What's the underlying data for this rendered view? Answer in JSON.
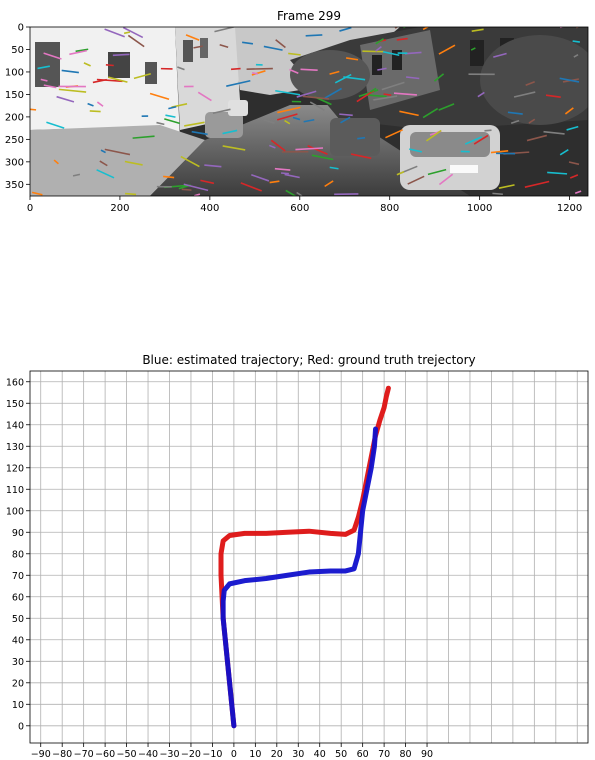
{
  "chart_data": [
    {
      "type": "image",
      "title": "Frame 299",
      "xlim": [
        0,
        1241
      ],
      "ylim": [
        376,
        0
      ],
      "xticks": [
        0,
        200,
        400,
        600,
        800,
        1000,
        1200
      ],
      "yticks": [
        0,
        50,
        100,
        150,
        200,
        250,
        300,
        350
      ],
      "colors": {
        "frame_dark": "#3a3a3a",
        "road": "#4a4a4a",
        "sky": "#bdbdbd",
        "building_left": "#f2f2f2"
      },
      "feature_track_colors": [
        "#1f77b4",
        "#ff7f0e",
        "#2ca02c",
        "#d62728",
        "#9467bd",
        "#8c564b",
        "#e377c2",
        "#7f7f7f",
        "#bcbd22",
        "#17becf"
      ]
    },
    {
      "type": "line",
      "title": "Blue: estimated trajectory; Red: ground truth trejectory",
      "xlim": [
        -95,
        165
      ],
      "ylim": [
        -8,
        165
      ],
      "xticks": [
        -90,
        -80,
        -70,
        -60,
        -50,
        -40,
        -30,
        -20,
        -10,
        0,
        10,
        20,
        30,
        40,
        50,
        60,
        70,
        80,
        90
      ],
      "yticks": [
        0,
        10,
        20,
        30,
        40,
        50,
        60,
        70,
        80,
        90,
        100,
        110,
        120,
        130,
        140,
        150,
        160
      ],
      "grid": true,
      "series": [
        {
          "color": "#dd1111",
          "points": [
            [
              0,
              0
            ],
            [
              -1,
              10
            ],
            [
              -2,
              20
            ],
            [
              -3,
              30
            ],
            [
              -4,
              40
            ],
            [
              -5,
              50
            ],
            [
              -5.5,
              60
            ],
            [
              -6,
              70
            ],
            [
              -6,
              80
            ],
            [
              -5,
              86
            ],
            [
              -2,
              88.5
            ],
            [
              5,
              89.5
            ],
            [
              15,
              89.5
            ],
            [
              25,
              90
            ],
            [
              35,
              90.5
            ],
            [
              45,
              89.5
            ],
            [
              52,
              89
            ],
            [
              56,
              91
            ],
            [
              58,
              97
            ],
            [
              60,
              105
            ],
            [
              62,
              115
            ],
            [
              64,
              125
            ],
            [
              66,
              135
            ],
            [
              68,
              142
            ],
            [
              70,
              148
            ],
            [
              71,
              153
            ],
            [
              72,
              157
            ]
          ]
        },
        {
          "color": "#1010cc",
          "points": [
            [
              0,
              0
            ],
            [
              -1,
              10
            ],
            [
              -2,
              20
            ],
            [
              -3,
              30
            ],
            [
              -4,
              40
            ],
            [
              -5,
              50
            ],
            [
              -5,
              58
            ],
            [
              -4.5,
              63
            ],
            [
              -2,
              66
            ],
            [
              5,
              67.5
            ],
            [
              15,
              68.5
            ],
            [
              25,
              70
            ],
            [
              35,
              71.5
            ],
            [
              45,
              72
            ],
            [
              52,
              72
            ],
            [
              56,
              73
            ],
            [
              58,
              80
            ],
            [
              59,
              90
            ],
            [
              60,
              100
            ],
            [
              62,
              110
            ],
            [
              64,
              120
            ],
            [
              65.5,
              130
            ],
            [
              66,
              138
            ]
          ]
        }
      ]
    }
  ]
}
